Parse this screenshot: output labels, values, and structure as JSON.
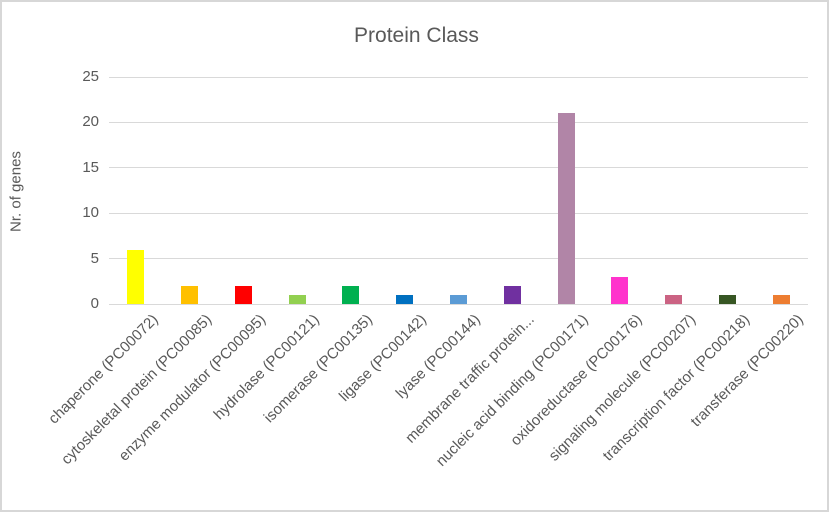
{
  "title": "Protein Class",
  "colors": {
    "text": "#595959",
    "gridline": "#d9d9d9",
    "frame_border": "#d7d7d7",
    "background": "#ffffff"
  },
  "chart_data": {
    "type": "bar",
    "title": "Protein Class",
    "xlabel": "",
    "ylabel": "Nr. of genes",
    "ylim": [
      0,
      25
    ],
    "yticks": [
      0,
      5,
      10,
      15,
      20,
      25
    ],
    "grid": true,
    "legend": false,
    "categories": [
      "chaperone (PC00072)",
      "cytoskeletal protein (PC00085)",
      "enzyme modulator (PC00095)",
      "hydrolase (PC00121)",
      "isomerase (PC00135)",
      "ligase (PC00142)",
      "lyase (PC00144)",
      "membrane traffic protein...",
      "nucleic acid binding (PC00171)",
      "oxidoreductase (PC00176)",
      "signaling molecule (PC00207)",
      "transcription factor (PC00218)",
      "transferase (PC00220)"
    ],
    "values": [
      6,
      2,
      2,
      1,
      2,
      1,
      1,
      2,
      21,
      3,
      1,
      1,
      1
    ],
    "bar_colors": [
      "#ffff00",
      "#ffc000",
      "#ff0000",
      "#92d050",
      "#00b050",
      "#0070c0",
      "#5b9bd5",
      "#7030a0",
      "#b185a7",
      "#ff33cc",
      "#cb6383",
      "#375623",
      "#ed7d31"
    ]
  }
}
